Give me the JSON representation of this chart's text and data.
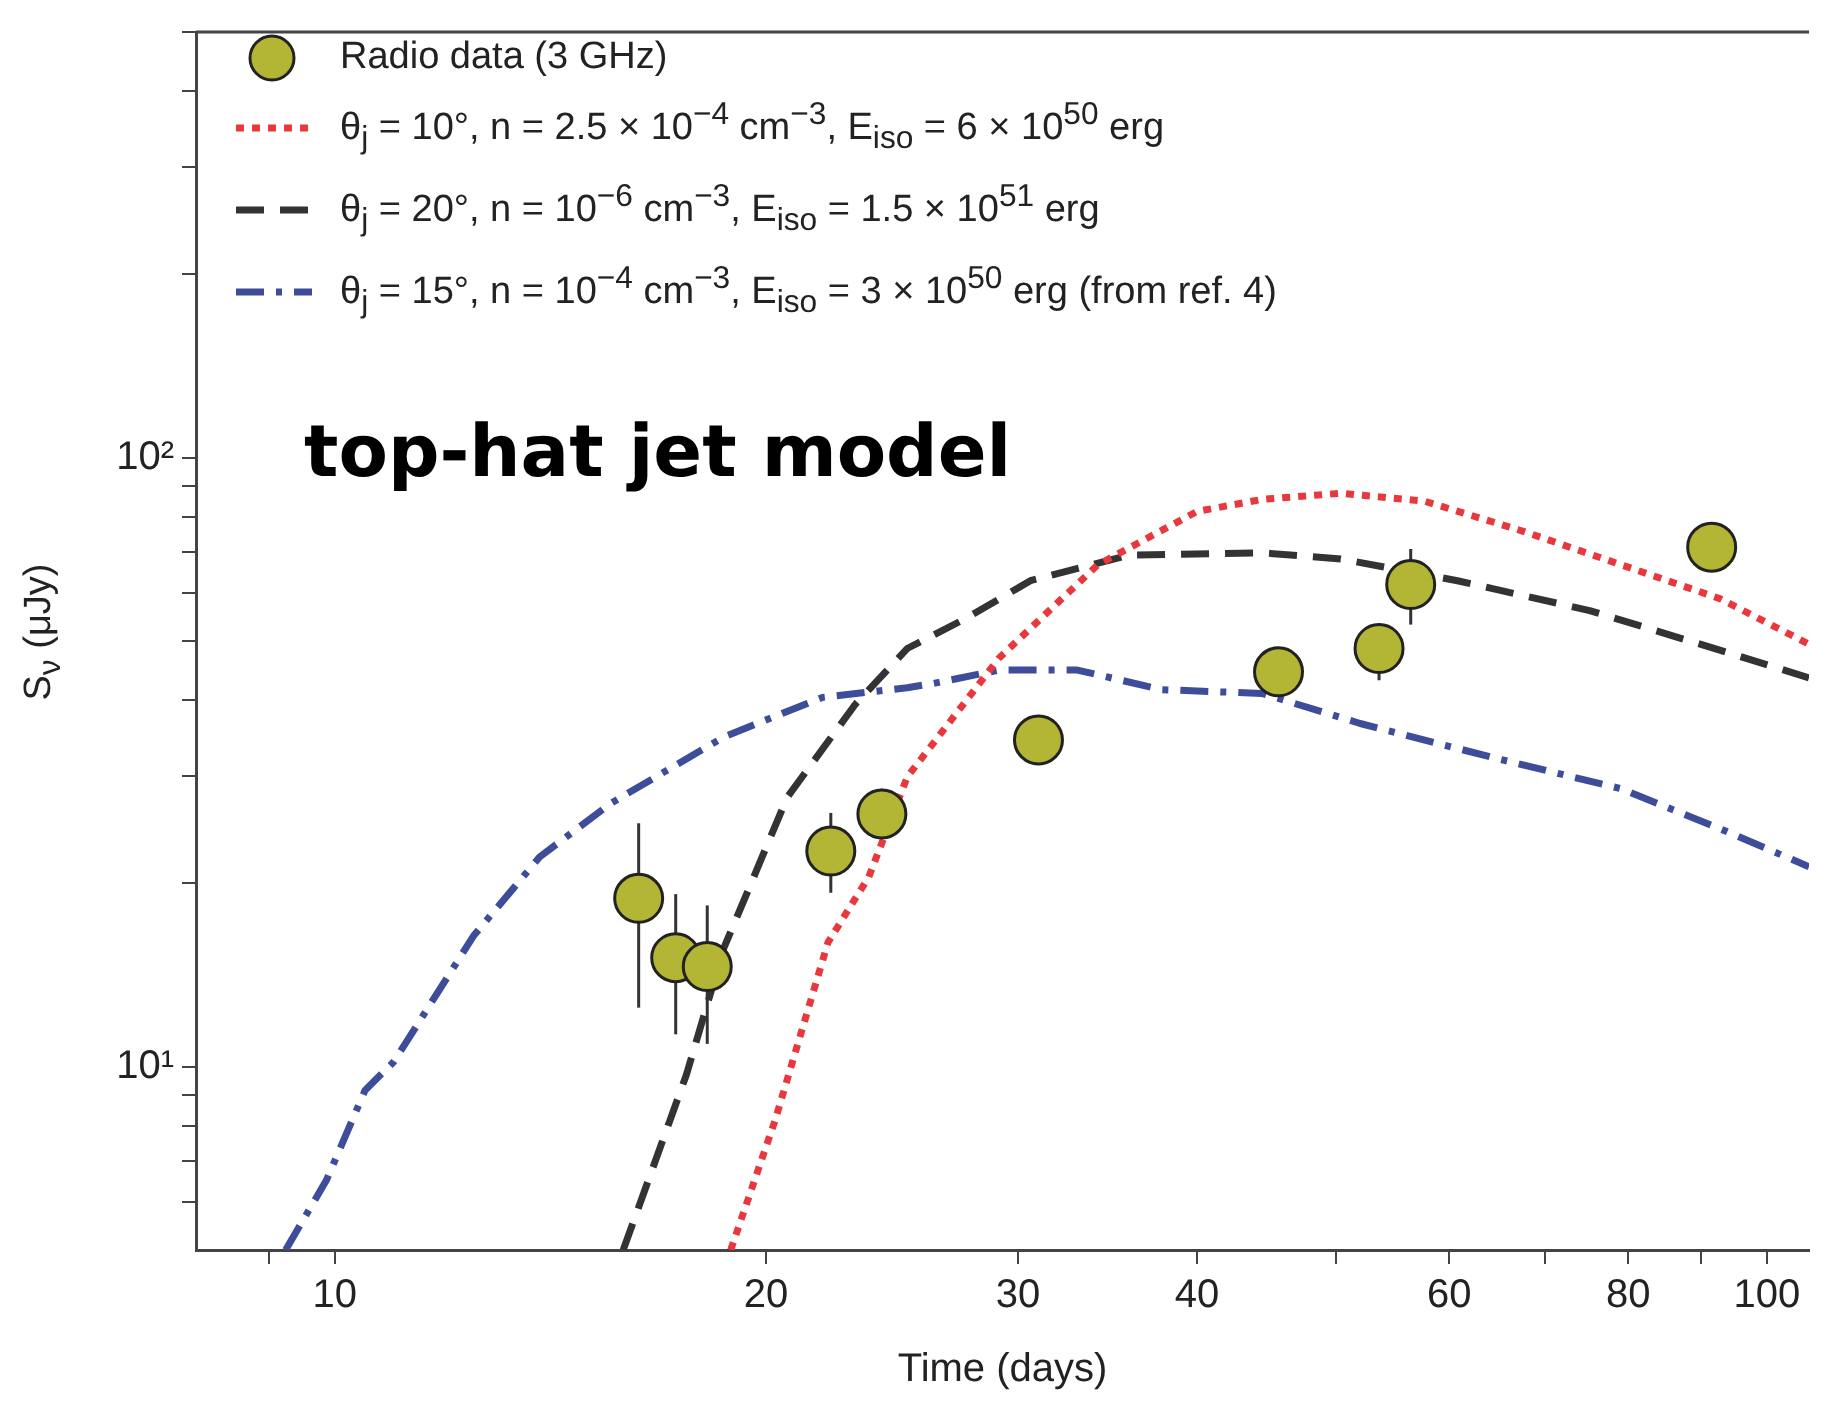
{
  "chart_data": {
    "type": "line",
    "xlabel": "Time (days)",
    "ylabel": "S$_{ν}$ (μJy)",
    "log": "xy",
    "grid": false,
    "legend": "top left",
    "annotations": [
      "top-hat jet model"
    ],
    "xlim": [
      8,
      107
    ],
    "xticks": [
      {
        "value": 9,
        "label": null
      },
      10,
      20,
      30,
      40,
      {
        "value": 50,
        "label": null
      },
      60,
      {
        "value": 70,
        "label": null
      },
      80,
      {
        "value": 90,
        "label": null
      },
      100
    ],
    "ylim": [
      5,
      500
    ],
    "yticks": [
      {
        "value": 6,
        "label": null
      },
      {
        "value": 7,
        "label": null
      },
      {
        "value": 8,
        "label": null
      },
      {
        "value": 9,
        "label": null
      },
      {
        "value": 10,
        "label": "10¹"
      },
      {
        "value": 20,
        "label": null
      },
      {
        "value": 30,
        "label": null
      },
      {
        "value": 40,
        "label": null
      },
      {
        "value": 50,
        "label": null
      },
      {
        "value": 60,
        "label": null
      },
      {
        "value": 70,
        "label": null
      },
      {
        "value": 80,
        "label": null
      },
      {
        "value": 90,
        "label": null
      },
      {
        "value": 100,
        "label": "10²"
      },
      {
        "value": 200,
        "label": null
      },
      {
        "value": 300,
        "label": null
      },
      {
        "value": 400,
        "label": null
      },
      {
        "value": 500,
        "label": null
      }
    ],
    "series": [
      {
        "type": "scatter",
        "name": "Radio data (3 GHz)",
        "color": "#b3b535",
        "marker": "circle",
        "x": [
          16.3,
          17.3,
          18.2,
          22.2,
          24.1,
          31.0,
          45.6,
          53.6,
          56.4,
          91.5
        ],
        "values": [
          18.9,
          15.1,
          14.6,
          22.6,
          26.0,
          34.4,
          44.5,
          48.6,
          61.9,
          71.3
        ],
        "errors": [
          [
            12.5,
            25.1
          ],
          [
            11.3,
            19.2
          ],
          [
            10.9,
            18.4
          ],
          [
            19.3,
            26.1
          ],
          [
            23.7,
            28.6
          ],
          null,
          null,
          [
            43.1,
            53.2
          ],
          [
            53.2,
            70.8
          ],
          null
        ]
      },
      {
        "name": "θ$_{j}$ = 10°, n = 2.5 × 10$^{−4}$ cm$^{−3}$, E$_{iso}$ = 6 × 10$^{50}$ erg",
        "color": "#e8383d",
        "line_style": "dotted",
        "marker": "none",
        "x": [
          18.9,
          20.3,
          22.1,
          23.6,
          25.1,
          29.1,
          34.1,
          40.0,
          44.4,
          50.4,
          57.7,
          67.6,
          79.1,
          92.7,
          107
        ],
        "values": [
          5.0,
          8.17,
          16.0,
          20.5,
          29.9,
          46.9,
          66.7,
          81.6,
          85.4,
          87.4,
          84.8,
          75.7,
          66.7,
          58.7,
          49.4
        ]
      },
      {
        "name": "θ$_{j}$ = 20°, n = 10$^{−6}$ cm$^{−3}$, E$_{iso}$ = 1.5 × 10$^{51}$ erg",
        "color": "#333333",
        "line_style": "dashed",
        "marker": "none",
        "x": [
          15.9,
          17.6,
          18.7,
          20.7,
          23.1,
          25.1,
          27.6,
          30.6,
          35.9,
          44.4,
          50.4,
          60.8,
          75.2,
          92.7,
          107
        ],
        "values": [
          5.0,
          9.7,
          15.7,
          27.7,
          39.4,
          48.6,
          54.5,
          62.8,
          69.2,
          69.8,
          68.2,
          62.8,
          56.1,
          48.3,
          43.5
        ]
      },
      {
        "name": "θ$_{j}$ = 15°, n = 10$^{−4}$ cm$^{−3}$, E$_{iso}$ = 3 × 10$^{50}$ erg (from ref. 4)",
        "color": "#3d4d9a",
        "line_style": "dashdot",
        "marker": "none",
        "x": [
          9.24,
          9.87,
          10.5,
          11.0,
          12.5,
          13.9,
          15.6,
          18.7,
          21.9,
          25.1,
          26.2,
          29.1,
          33.0,
          37.8,
          44.4,
          52.0,
          64.3,
          79.1,
          92.7,
          107
        ],
        "values": [
          5.0,
          6.52,
          9.15,
          10.2,
          16.4,
          22.1,
          27.1,
          34.8,
          40.4,
          41.9,
          42.6,
          44.8,
          44.8,
          41.6,
          41.0,
          36.6,
          32.2,
          28.6,
          24.6,
          21.3
        ]
      }
    ]
  }
}
